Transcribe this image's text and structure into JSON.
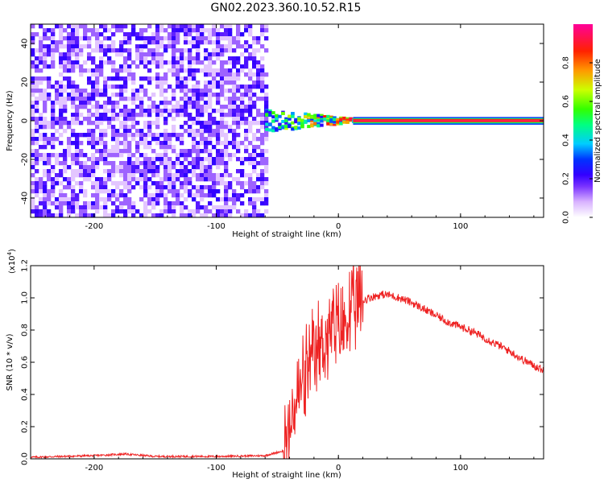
{
  "title": "GN02.2023.360.10.52.R15",
  "chart_data": [
    {
      "type": "heatmap",
      "title": "GN02.2023.360.10.52.R15",
      "xlabel": "Height of straight line (km)",
      "ylabel": "Frequency (Hz)",
      "xlim": [
        -252,
        168
      ],
      "ylim": [
        -50,
        50
      ],
      "x_ticks": [
        -200,
        -100,
        0,
        100
      ],
      "x_tick_labels": [
        "-200",
        "-100",
        "0",
        "100"
      ],
      "y_ticks": [
        -40,
        -20,
        0,
        20,
        40
      ],
      "y_tick_labels": [
        "-40",
        "-20",
        "0",
        "20",
        "40"
      ],
      "colorbar": {
        "label": "Normalized spectral amplitude",
        "range": [
          0,
          1
        ],
        "ticks": [
          0.0,
          0.2,
          0.4,
          0.6,
          0.8
        ],
        "tick_labels": [
          "0.0",
          "0.2",
          "0.4",
          "0.6",
          "0.8"
        ],
        "colors": [
          "#ffffff",
          "#d9b3ff",
          "#7a33ff",
          "#3300ff",
          "#0033ff",
          "#00ccff",
          "#00ff80",
          "#33ff00",
          "#ccff00",
          "#ff9900",
          "#ff2200",
          "#ff0099"
        ]
      },
      "features": {
        "noise_region_x": [
          -252,
          -60
        ],
        "transition_x": [
          -60,
          12
        ],
        "line_x": [
          12,
          168
        ],
        "line_freq": 0
      }
    },
    {
      "type": "line",
      "xlabel": "Height of straight line (km)",
      "ylabel": "SNR (10 * v/v)",
      "multiplier_label": "(x10",
      "multiplier_exp": "4",
      "multiplier_close": ")",
      "xlim": [
        -252,
        168
      ],
      "ylim": [
        0,
        1.2
      ],
      "x_ticks": [
        -200,
        -100,
        0,
        100
      ],
      "x_tick_labels": [
        "-200",
        "-100",
        "0",
        "100"
      ],
      "y_ticks": [
        0.0,
        0.2,
        0.4,
        0.6,
        0.8,
        1.0,
        1.2
      ],
      "y_tick_labels": [
        "0.0",
        "0.2",
        "0.4",
        "0.6",
        "0.8",
        "1.0",
        "1.2"
      ],
      "series": [
        {
          "color": "#ee2222",
          "x": [
            -252,
            -200,
            -175,
            -150,
            -100,
            -60,
            -45,
            -40,
            -35,
            -30,
            -25,
            -20,
            -15,
            -10,
            -5,
            0,
            5,
            10,
            15,
            20,
            25,
            30,
            35,
            40,
            50,
            60,
            70,
            80,
            90,
            100,
            110,
            120,
            130,
            140,
            150,
            160,
            168
          ],
          "y": [
            0.01,
            0.02,
            0.03,
            0.015,
            0.015,
            0.02,
            0.05,
            0.15,
            0.35,
            0.45,
            0.55,
            0.6,
            0.7,
            0.75,
            0.8,
            0.8,
            0.83,
            0.9,
            0.95,
            0.98,
            1.0,
            1.01,
            1.02,
            1.02,
            1.0,
            0.97,
            0.93,
            0.89,
            0.85,
            0.82,
            0.79,
            0.75,
            0.71,
            0.67,
            0.62,
            0.58,
            0.55
          ]
        }
      ]
    }
  ]
}
